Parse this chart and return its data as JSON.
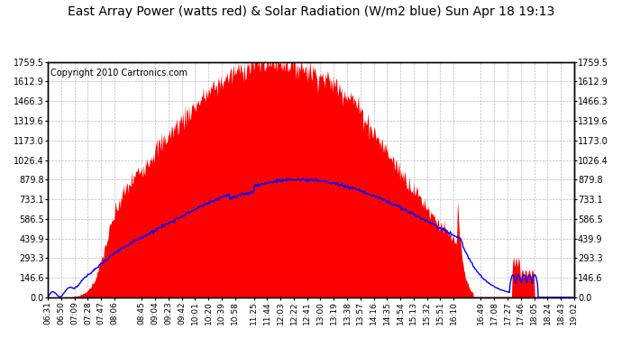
{
  "title": "East Array Power (watts red) & Solar Radiation (W/m2 blue) Sun Apr 18 19:13",
  "copyright": "Copyright 2010 Cartronics.com",
  "bg_color": "#ffffff",
  "y_max": 1759.5,
  "y_min": 0.0,
  "y_ticks": [
    0.0,
    146.6,
    293.3,
    439.9,
    586.5,
    733.1,
    879.8,
    1026.4,
    1173.0,
    1319.6,
    1466.3,
    1612.9,
    1759.5
  ],
  "x_labels": [
    "06:31",
    "06:50",
    "07:09",
    "07:28",
    "07:47",
    "08:06",
    "08:45",
    "09:04",
    "09:23",
    "09:42",
    "10:01",
    "10:20",
    "10:39",
    "10:58",
    "11:25",
    "11:44",
    "12:03",
    "12:22",
    "12:41",
    "13:00",
    "13:19",
    "13:38",
    "13:57",
    "14:16",
    "14:35",
    "14:54",
    "15:13",
    "15:32",
    "15:51",
    "16:10",
    "16:49",
    "17:08",
    "17:27",
    "17:46",
    "18:05",
    "18:24",
    "18:43",
    "19:02"
  ],
  "fill_color": "#ff0000",
  "line_color": "#0000ff",
  "grid_color": "#aaaaaa",
  "plot_bg_color": "#ffffff",
  "border_color": "#000000",
  "title_fontsize": 10,
  "tick_fontsize": 7,
  "copyright_fontsize": 7
}
